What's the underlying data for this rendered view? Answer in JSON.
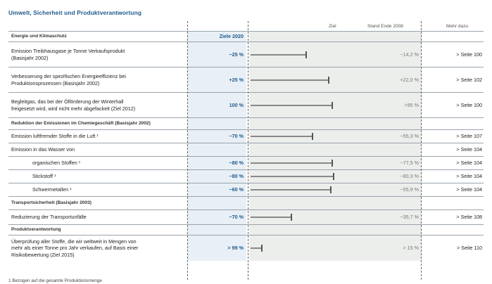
{
  "title": "Umwelt, Sicherheit und Produktverantwortung",
  "headers": {
    "ziel": "Ziel",
    "stand": "Stand Ende 2008",
    "mehr": "Mehr dazu",
    "ziele": "Ziele 2020"
  },
  "rows": [
    {
      "type": "sec",
      "label": "Energie und Klimaschutz",
      "goal": "Ziele 2020",
      "h": 14
    },
    {
      "type": "data",
      "label": "Emission Treibhausgase je Tonne Verkaufsprodukt\n(Basisjahr 2002)",
      "goal": "−25 %",
      "progress": 0.34,
      "stand": "−14,2 %",
      "more": "> Seite 100",
      "h": 35
    },
    {
      "type": "data",
      "label": "Verbesserung der spezifischen Energieeffizienz bei\nProduktionsprozessen (Basisjahr 2002)",
      "goal": "+25 %",
      "progress": 0.48,
      "stand": "+22,0 %",
      "more": "> Seite 102",
      "h": 35
    },
    {
      "type": "data",
      "label": "Begleitgas, das bei der Ölförderung der Winterhall\nfreigesetzt wird, wird nicht mehr abgefackelt (Ziel 2012)",
      "goal": "100 %",
      "progress": 0.5,
      "stand": ">95 %",
      "more": "> Seite 100",
      "h": 35
    },
    {
      "type": "sec",
      "label": "Reduktion der Emissionen im Chemiegeschäft (Basisjahr 2002)",
      "h": 16
    },
    {
      "type": "data",
      "label": "Emission luftfremder Stoffe in die Luft ¹",
      "goal": "−70 %",
      "progress": 0.38,
      "stand": "−55,3 %",
      "more": "> Seite 107",
      "h": 18
    },
    {
      "type": "sub",
      "label": "Emission in das Wasser von",
      "more": "> Seite 104",
      "h": 18
    },
    {
      "type": "data",
      "indent": true,
      "label": "organischen Stoffen ¹",
      "goal": "−80 %",
      "progress": 0.5,
      "stand": "−77,5 %",
      "more": "> Seite 104",
      "h": 18
    },
    {
      "type": "data",
      "indent": true,
      "label": "Stickstoff ¹",
      "goal": "−80 %",
      "progress": 0.51,
      "stand": "−80,3 %",
      "more": "> Seite 104",
      "h": 18
    },
    {
      "type": "data",
      "indent": true,
      "label": "Schwermetallen ¹",
      "goal": "−60 %",
      "progress": 0.49,
      "stand": "−55,9 %",
      "more": "> Seite 104",
      "h": 18
    },
    {
      "type": "sec",
      "label": "Transportsicherheit (Basisjahr 2003)",
      "h": 18
    },
    {
      "type": "data",
      "label": "Reduzierung der Transportunfälle",
      "goal": "−70 %",
      "progress": 0.25,
      "stand": "−35,7 %",
      "more": "> Seite 108",
      "h": 20
    },
    {
      "type": "sec",
      "label": "Produktverantwortung",
      "h": 14
    },
    {
      "type": "data",
      "label": "Überprüfung aller Stoffe, die wir weltweit in Mengen von\nmehr als einer Tonne pro Jahr verkaufen, auf Basis einer\nRisikobewertung (Ziel 2015)",
      "goal": "> 99 %",
      "progress": 0.07,
      "stand": "> 15 %",
      "more": "> Seite 110",
      "h": 36
    }
  ],
  "footnote": "1  Bezogen auf die gesamte Produktionsmenge"
}
